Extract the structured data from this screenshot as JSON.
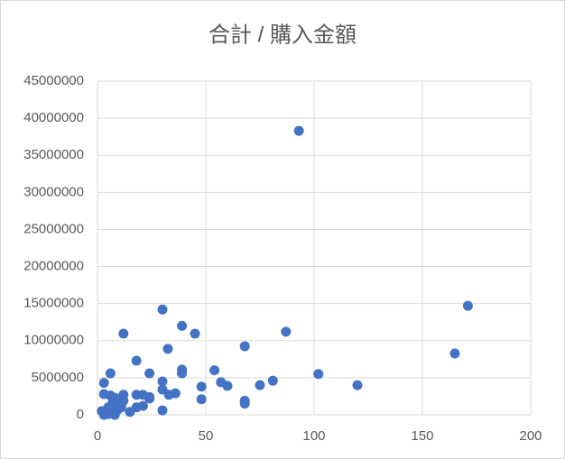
{
  "chart_data": {
    "type": "scatter",
    "title": "合計 / 購入金額",
    "x": [
      93,
      171,
      165,
      30,
      39,
      12,
      45,
      87,
      68,
      32.5,
      18,
      6,
      24,
      39,
      39,
      54,
      102,
      48,
      57,
      60,
      75,
      81,
      120,
      30,
      30,
      36,
      33,
      48,
      68,
      68,
      30,
      3,
      3,
      6,
      12,
      18,
      21,
      24,
      21,
      18,
      15,
      2,
      3,
      4,
      5,
      7,
      8,
      9,
      10,
      11,
      12,
      5,
      8,
      24
    ],
    "values": [
      38300000,
      14700000,
      8270000,
      14200000,
      12000000,
      10950000,
      10950000,
      11200000,
      9250000,
      8900000,
      7300000,
      5600000,
      5600000,
      6100000,
      5600000,
      6000000,
      5500000,
      3800000,
      4400000,
      3900000,
      4000000,
      4600000,
      4000000,
      4500000,
      3400000,
      2900000,
      2700000,
      2100000,
      1900000,
      1500000,
      600000,
      4300000,
      2800000,
      2600000,
      2700000,
      2700000,
      2700000,
      2200000,
      1200000,
      1000000,
      400000,
      500000,
      0,
      200000,
      1000000,
      1600000,
      2300000,
      600000,
      1300000,
      1000000,
      1900000,
      100000,
      0,
      2400000
    ],
    "color": "#4472c4",
    "xlim": [
      0,
      200
    ],
    "xticks": [
      0,
      50,
      100,
      150,
      200
    ],
    "ylim": [
      0,
      45000000
    ],
    "yticks": [
      0,
      5000000,
      10000000,
      15000000,
      20000000,
      25000000,
      30000000,
      35000000,
      40000000,
      45000000
    ],
    "grid": true
  }
}
